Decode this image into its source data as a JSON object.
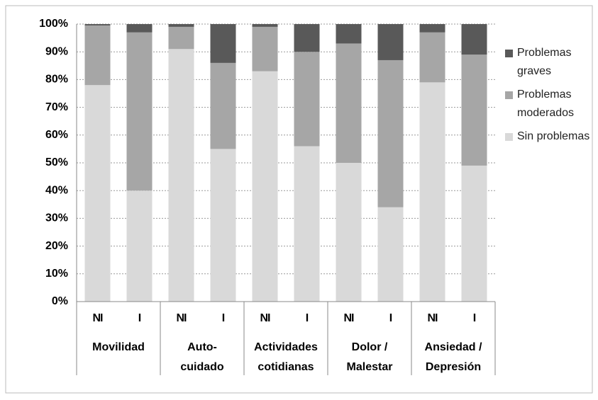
{
  "chart_data": {
    "type": "stacked_bar",
    "categories": [
      "NI",
      "I",
      "NI",
      "I",
      "NI",
      "I",
      "NI",
      "I",
      "NI",
      "I"
    ],
    "groups": [
      [
        "Movilidad"
      ],
      [
        "Auto-",
        "cuidado"
      ],
      [
        "Actividades",
        "cotidianas"
      ],
      [
        "Dolor /",
        "Malestar"
      ],
      [
        "Ansiedad /",
        "Depresión"
      ]
    ],
    "series": [
      {
        "name": "Sin problemas",
        "color": "#d9d9d9",
        "values": [
          78,
          40,
          91,
          55,
          83,
          56,
          50,
          34,
          79,
          49
        ]
      },
      {
        "name": "Problemas moderados",
        "color": "#a6a6a6",
        "values": [
          21.5,
          57,
          8,
          31,
          16,
          34,
          43,
          53,
          18,
          40
        ]
      },
      {
        "name": "Problemas graves",
        "color": "#595959",
        "values": [
          0.5,
          3,
          1,
          14,
          1,
          10,
          7,
          13,
          3,
          11
        ]
      }
    ],
    "ylim": [
      0,
      100
    ],
    "yticks": [
      {
        "value": 0,
        "label": "0%"
      },
      {
        "value": 10,
        "label": "10%"
      },
      {
        "value": 20,
        "label": "20%"
      },
      {
        "value": 30,
        "label": "30%"
      },
      {
        "value": 40,
        "label": "40%"
      },
      {
        "value": 50,
        "label": "50%"
      },
      {
        "value": 60,
        "label": "60%"
      },
      {
        "value": 70,
        "label": "70%"
      },
      {
        "value": 80,
        "label": "80%"
      },
      {
        "value": 90,
        "label": "90%"
      },
      {
        "value": 100,
        "label": "100%"
      }
    ],
    "grid": true,
    "legend": "right"
  }
}
